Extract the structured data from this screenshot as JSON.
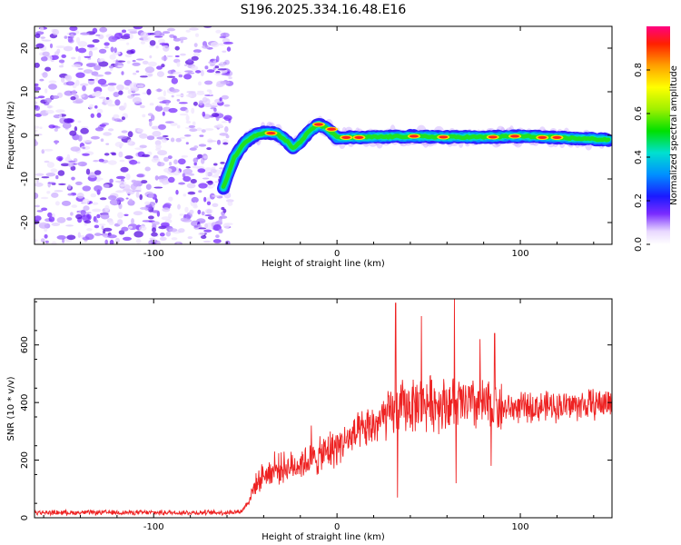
{
  "title": "S196.2025.334.16.48.E16",
  "chart_data": [
    {
      "type": "heatmap",
      "name": "spectrogram",
      "xlabel": "Height of straight line (km)",
      "ylabel": "Frequency (Hz)",
      "xlim": [
        -165,
        150
      ],
      "ylim": [
        -25,
        25
      ],
      "xticks": [
        -100,
        0,
        100
      ],
      "yticks": [
        -20,
        -10,
        0,
        10,
        20
      ],
      "noise_region_x": [
        -165,
        -58
      ],
      "ridge": [
        {
          "x": -62,
          "y": -12
        },
        {
          "x": -56,
          "y": -5
        },
        {
          "x": -50,
          "y": -1.5
        },
        {
          "x": -45,
          "y": 0
        },
        {
          "x": -40,
          "y": 0.6
        },
        {
          "x": -33,
          "y": 0.5
        },
        {
          "x": -27,
          "y": -1.5
        },
        {
          "x": -24,
          "y": -3
        },
        {
          "x": -20,
          "y": -1.5
        },
        {
          "x": -15,
          "y": 1
        },
        {
          "x": -10,
          "y": 2.5
        },
        {
          "x": -5,
          "y": 1.5
        },
        {
          "x": 0,
          "y": -0.5
        },
        {
          "x": 20,
          "y": -0.4
        },
        {
          "x": 40,
          "y": -0.2
        },
        {
          "x": 60,
          "y": -0.4
        },
        {
          "x": 80,
          "y": -0.4
        },
        {
          "x": 100,
          "y": -0.2
        },
        {
          "x": 120,
          "y": -0.5
        },
        {
          "x": 148,
          "y": -1
        }
      ],
      "colorbar": {
        "label": "Normalized spectral amplitude",
        "ticks": [
          "0.0",
          "0.2",
          "0.4",
          "0.6",
          "0.8"
        ],
        "range": [
          0,
          1
        ]
      }
    },
    {
      "type": "line",
      "name": "snr",
      "xlabel": "Height of straight line (km)",
      "ylabel": "SNR (10 * v/v)",
      "xlim": [
        -165,
        150
      ],
      "ylim": [
        0,
        760
      ],
      "xticks": [
        -100,
        0,
        100
      ],
      "yticks": [
        0,
        200,
        400,
        600
      ],
      "series_color": "#ee2222",
      "envelope": [
        {
          "x": -165,
          "y": 18
        },
        {
          "x": -60,
          "y": 18
        },
        {
          "x": -52,
          "y": 22
        },
        {
          "x": -48,
          "y": 60
        },
        {
          "x": -45,
          "y": 110
        },
        {
          "x": -40,
          "y": 150
        },
        {
          "x": -35,
          "y": 160
        },
        {
          "x": -30,
          "y": 175
        },
        {
          "x": -25,
          "y": 175
        },
        {
          "x": -20,
          "y": 190
        },
        {
          "x": -15,
          "y": 200
        },
        {
          "x": -10,
          "y": 210
        },
        {
          "x": 0,
          "y": 250
        },
        {
          "x": 10,
          "y": 285
        },
        {
          "x": 20,
          "y": 320
        },
        {
          "x": 28,
          "y": 355
        },
        {
          "x": 35,
          "y": 385
        },
        {
          "x": 50,
          "y": 400
        },
        {
          "x": 70,
          "y": 395
        },
        {
          "x": 90,
          "y": 380
        },
        {
          "x": 110,
          "y": 385
        },
        {
          "x": 130,
          "y": 390
        },
        {
          "x": 150,
          "y": 400
        }
      ],
      "spikes": [
        {
          "x": -34,
          "y": 230
        },
        {
          "x": -14,
          "y": 320
        },
        {
          "x": 32,
          "y": 745
        },
        {
          "x": 33,
          "y": 70
        },
        {
          "x": 46,
          "y": 700
        },
        {
          "x": 64,
          "y": 760
        },
        {
          "x": 65,
          "y": 120
        },
        {
          "x": 78,
          "y": 620
        },
        {
          "x": 86,
          "y": 640
        },
        {
          "x": 84,
          "y": 180
        }
      ]
    }
  ]
}
